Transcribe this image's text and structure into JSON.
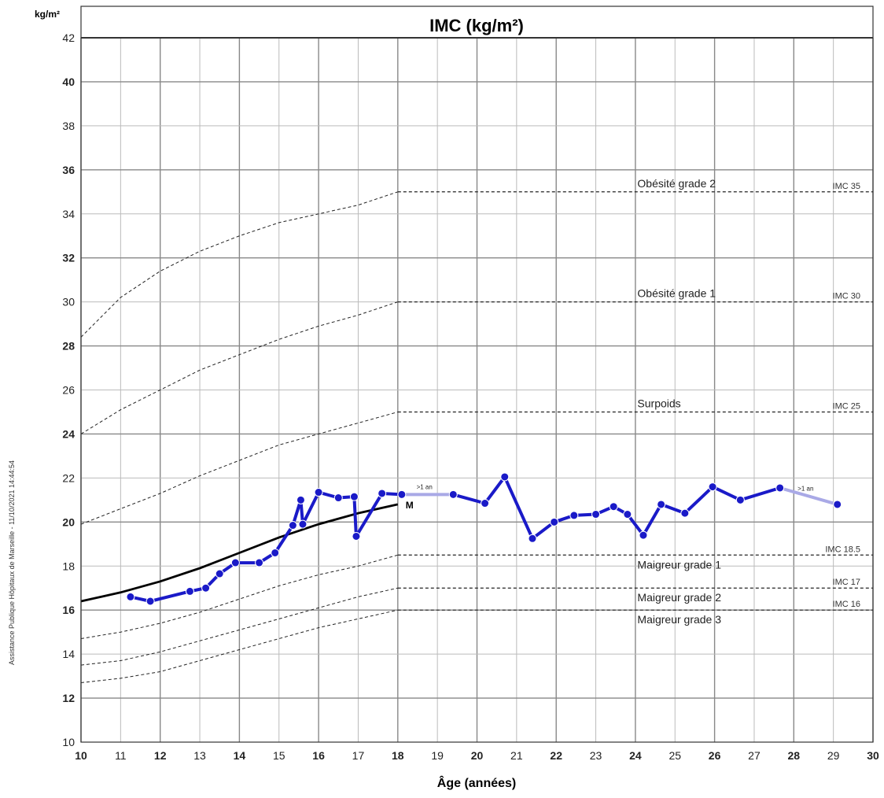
{
  "chart_data": {
    "type": "line",
    "title": "IMC (kg/m²)",
    "unit_label": "kg/m²",
    "xlabel": "Âge (années)",
    "xlim": [
      10,
      30
    ],
    "ylim": [
      10,
      42
    ],
    "x_ticks": [
      10,
      11,
      12,
      13,
      14,
      15,
      16,
      17,
      18,
      19,
      20,
      21,
      22,
      23,
      24,
      25,
      26,
      27,
      28,
      29,
      30
    ],
    "x_bold_ticks": [
      10,
      12,
      14,
      16,
      18,
      20,
      22,
      24,
      26,
      28,
      30
    ],
    "y_ticks": [
      10,
      12,
      14,
      16,
      18,
      20,
      22,
      24,
      26,
      28,
      30,
      32,
      34,
      36,
      38,
      40,
      42
    ],
    "y_bold_ticks": [
      12,
      16,
      20,
      24,
      28,
      32,
      36,
      40
    ],
    "grid": true,
    "colors": {
      "patient": "#1a1ac8",
      "patient_gap": "#a9a9e6",
      "median": "#000000",
      "reference": "#222222",
      "grid": "#bbbbbb",
      "grid_major": "#888888"
    },
    "side_text": "Assistance Publique Hôpitaux de Marseille - 11/10/2021 14:44:54",
    "pediatric_curves": [
      {
        "x": [
          10,
          11,
          12,
          13,
          14,
          15,
          16,
          17,
          18
        ],
        "y": [
          28.4,
          30.2,
          31.4,
          32.3,
          33.0,
          33.6,
          34.0,
          34.4,
          35.0
        ]
      },
      {
        "x": [
          10,
          11,
          12,
          13,
          14,
          15,
          16,
          17,
          18
        ],
        "y": [
          24.0,
          25.1,
          26.0,
          26.9,
          27.6,
          28.3,
          28.9,
          29.4,
          30.0
        ]
      },
      {
        "x": [
          10,
          11,
          12,
          13,
          14,
          15,
          16,
          17,
          18
        ],
        "y": [
          19.9,
          20.6,
          21.3,
          22.1,
          22.8,
          23.5,
          24.0,
          24.5,
          25.0
        ]
      },
      {
        "x": [
          10,
          11,
          12,
          13,
          14,
          15,
          16,
          17,
          18
        ],
        "y": [
          14.7,
          15.0,
          15.4,
          15.9,
          16.5,
          17.1,
          17.6,
          18.0,
          18.5
        ]
      },
      {
        "x": [
          10,
          11,
          12,
          13,
          14,
          15,
          16,
          17,
          18
        ],
        "y": [
          13.5,
          13.7,
          14.1,
          14.6,
          15.1,
          15.6,
          16.1,
          16.6,
          17.0
        ]
      },
      {
        "x": [
          10,
          11,
          12,
          13,
          14,
          15,
          16,
          17,
          18
        ],
        "y": [
          12.7,
          12.9,
          13.2,
          13.7,
          14.2,
          14.7,
          15.2,
          15.6,
          16.0
        ]
      }
    ],
    "adult_thresholds": [
      {
        "y": 35,
        "ref_label": "IMC 35",
        "band_label": "Obésité grade 2",
        "band_pos": "above"
      },
      {
        "y": 30,
        "ref_label": "IMC 30",
        "band_label": "Obésité grade 1",
        "band_pos": "above"
      },
      {
        "y": 25,
        "ref_label": "IMC 25",
        "band_label": "Surpoids",
        "band_pos": "above"
      },
      {
        "y": 18.5,
        "ref_label": "IMC 18.5",
        "band_label": "Maigreur grade 1",
        "band_pos": "below"
      },
      {
        "y": 17,
        "ref_label": "IMC 17",
        "band_label": "Maigreur grade 2",
        "band_pos": "below"
      },
      {
        "y": 16,
        "ref_label": "IMC 16",
        "band_label": "Maigreur grade 3",
        "band_pos": "below"
      }
    ],
    "median_curve": {
      "label": "M",
      "x": [
        10,
        11,
        12,
        13,
        14,
        15,
        16,
        17,
        18
      ],
      "y": [
        16.4,
        16.8,
        17.3,
        17.9,
        18.6,
        19.3,
        19.9,
        20.4,
        20.8
      ]
    },
    "series": [
      {
        "segments": [
          {
            "x": [
              11.25,
              11.75,
              12.75,
              13.15,
              13.5,
              13.9,
              14.5,
              14.9,
              15.35,
              15.55,
              15.6,
              16.0,
              16.5,
              16.9,
              16.95,
              17.6,
              18.1
            ],
            "y": [
              16.6,
              16.4,
              16.85,
              17.0,
              17.65,
              18.15,
              18.15,
              18.6,
              19.85,
              21.0,
              19.9,
              21.35,
              21.1,
              21.15,
              19.35,
              21.3,
              21.25
            ],
            "style": "solid"
          },
          {
            "x": [
              18.1,
              19.4
            ],
            "y": [
              21.25,
              21.25
            ],
            "style": "gap",
            "note": ">1 an"
          },
          {
            "x": [
              19.4,
              20.2,
              20.7,
              21.4,
              21.95,
              22.45,
              23.0,
              23.45,
              23.8,
              24.2,
              24.65,
              25.25,
              25.95,
              26.65,
              27.65
            ],
            "y": [
              21.25,
              20.85,
              22.05,
              19.25,
              20.0,
              20.3,
              20.35,
              20.7,
              20.35,
              19.4,
              20.8,
              20.4,
              21.6,
              21.0,
              21.55
            ],
            "style": "solid"
          },
          {
            "x": [
              27.65,
              29.1
            ],
            "y": [
              21.55,
              20.8
            ],
            "style": "gap",
            "note": ">1 an"
          }
        ]
      }
    ]
  }
}
